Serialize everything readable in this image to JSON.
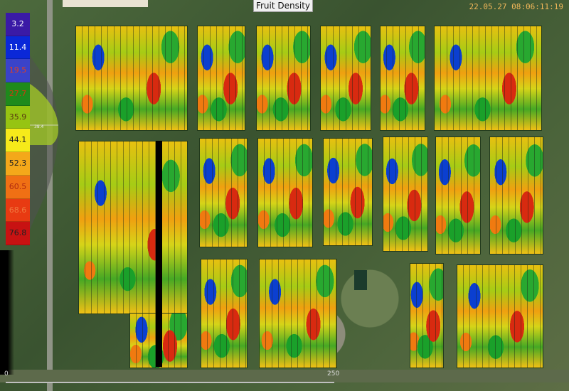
{
  "header": {
    "title": "Fruit Density",
    "timestamp": "22.05.27 08:06:11:19"
  },
  "legend": {
    "items": [
      {
        "value": "3.2",
        "color": "#3a1aa6",
        "text_color": "#ffffff"
      },
      {
        "value": "11.4",
        "color": "#0a28d8",
        "text_color": "#ffffff"
      },
      {
        "value": "19.5",
        "color": "#3a43c9",
        "text_color": "#e04020"
      },
      {
        "value": "27.7",
        "color": "#1f8a1c",
        "text_color": "#cc3a10"
      },
      {
        "value": "35.9",
        "color": "#96c412",
        "text_color": "#5a3a10"
      },
      {
        "value": "44.1",
        "color": "#f6ea1a",
        "text_color": "#222222"
      },
      {
        "value": "52.3",
        "color": "#f4a81a",
        "text_color": "#222222"
      },
      {
        "value": "60.5",
        "color": "#f07014",
        "text_color": "#b02a10"
      },
      {
        "value": "68.6",
        "color": "#e83a12",
        "text_color": "#f07a40"
      },
      {
        "value": "76.8",
        "color": "#c81212",
        "text_color": "#222222"
      }
    ],
    "mean_marker": "38.4"
  },
  "scale": {
    "start": "0",
    "end": "250"
  }
}
